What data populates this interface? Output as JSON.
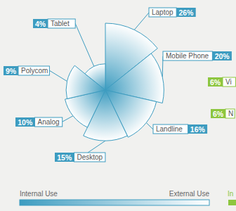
{
  "chart_data": {
    "type": "polar_area",
    "categories": [
      "Laptop",
      "Mobile Phone",
      "Landline",
      "Desktop",
      "Analog",
      "Polycom",
      "Tablet"
    ],
    "values": [
      26,
      20,
      16,
      15,
      10,
      9,
      4
    ],
    "value_labels": [
      "26%",
      "20%",
      "16%",
      "15%",
      "10%",
      "9%",
      "4%"
    ],
    "data_labels": true,
    "color": "#3d9cc0",
    "gradient_legend": [
      "Internal Use",
      "External Use"
    ],
    "annotations": [
      {
        "label": "6%",
        "text": "Vi"
      },
      {
        "label": "6%",
        "text": "N"
      },
      {
        "text": "In"
      }
    ]
  }
}
